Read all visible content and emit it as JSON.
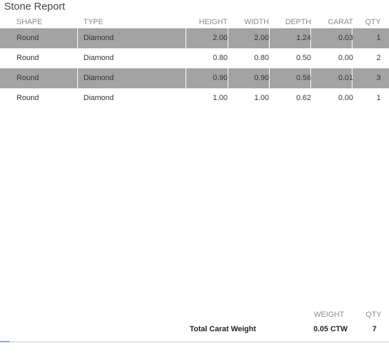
{
  "report": {
    "title": "Stone Report"
  },
  "columns": {
    "shape": "SHAPE",
    "type": "TYPE",
    "height": "HEIGHT",
    "width": "WIDTH",
    "depth": "DEPTH",
    "carat": "CARAT",
    "qty": "QTY"
  },
  "rows": [
    {
      "shape": "Round",
      "type": "Diamond",
      "height": "2.00",
      "width": "2.00",
      "depth": "1.24",
      "carat": "0.03",
      "qty": "1",
      "shaded": true
    },
    {
      "shape": "Round",
      "type": "Diamond",
      "height": "0.80",
      "width": "0.80",
      "depth": "0.50",
      "carat": "0.00",
      "qty": "2",
      "shaded": false
    },
    {
      "shape": "Round",
      "type": "Diamond",
      "height": "0.90",
      "width": "0.90",
      "depth": "0.56",
      "carat": "0.01",
      "qty": "3",
      "shaded": true
    },
    {
      "shape": "Round",
      "type": "Diamond",
      "height": "1.00",
      "width": "1.00",
      "depth": "0.62",
      "carat": "0.00",
      "qty": "1",
      "shaded": false
    }
  ],
  "summary": {
    "weight_header": "WEIGHT",
    "qty_header": "QTY",
    "label": "Total Carat Weight",
    "weight": "0.05 CTW",
    "qty": "7"
  },
  "colors": {
    "row_shade": "#a3a3a3",
    "header_text": "#8a8a8a"
  }
}
